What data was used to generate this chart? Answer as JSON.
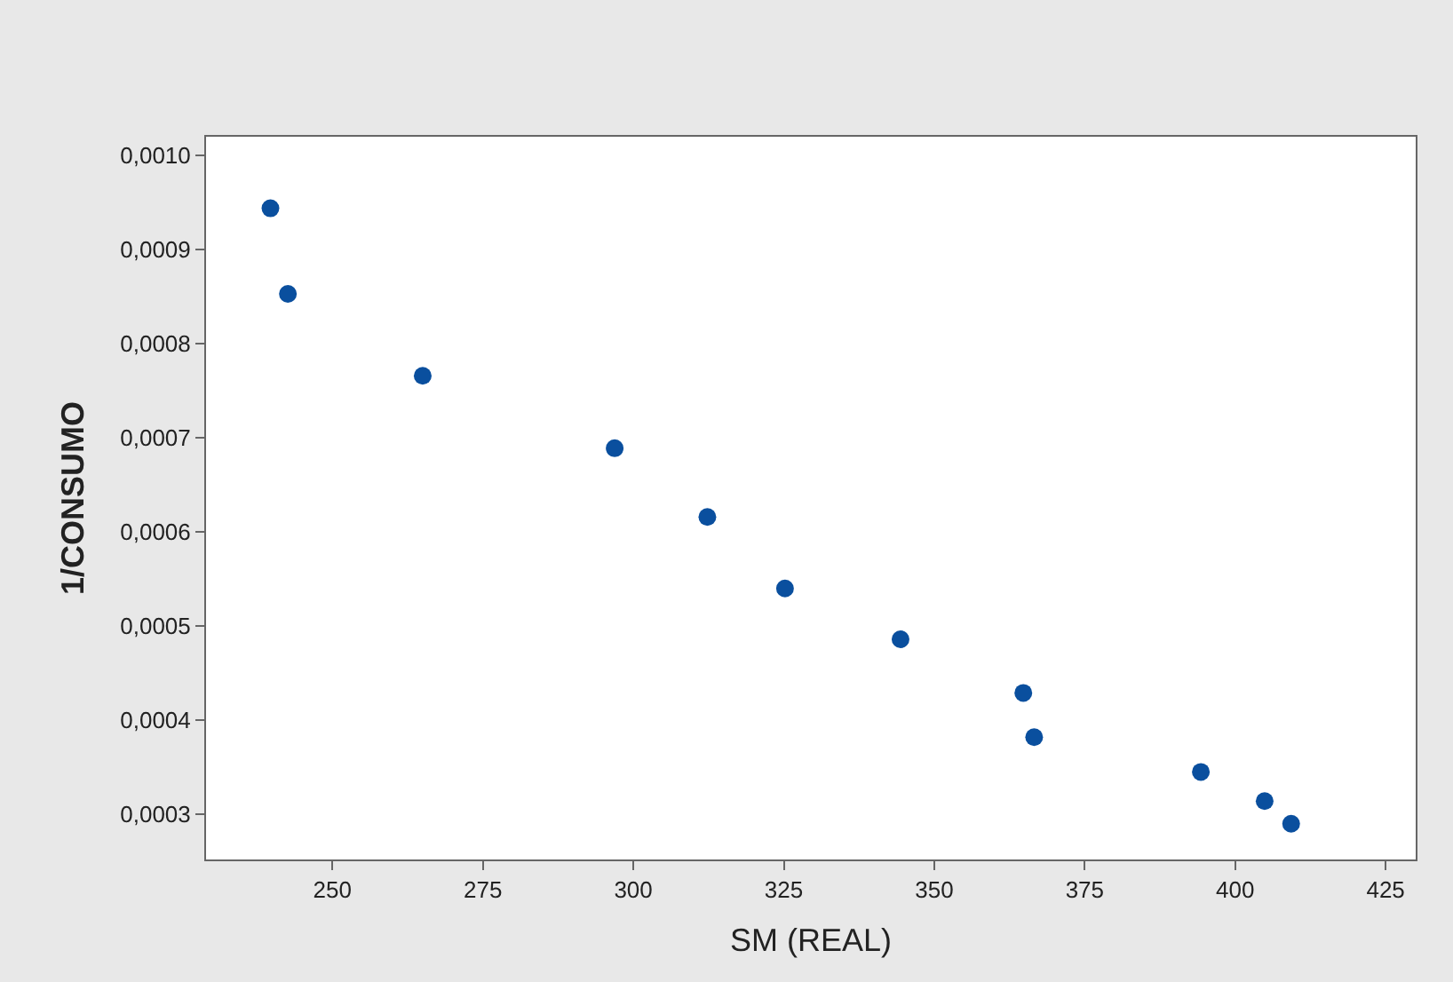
{
  "chart_data": {
    "type": "scatter",
    "xlabel": "SM (REAL)",
    "ylabel": "1/CONSUMO",
    "x": [
      239.7,
      242.6,
      265.0,
      296.9,
      312.3,
      325.2,
      344.4,
      364.8,
      366.6,
      394.3,
      404.9,
      409.3
    ],
    "series": [
      {
        "color": "#0a4f9e",
        "values": [
          0.000944,
          0.000853,
          0.000766,
          0.000689,
          0.000616,
          0.00054,
          0.000486,
          0.000429,
          0.000382,
          0.000345,
          0.000314,
          0.00029
        ]
      }
    ],
    "xlim": [
      229,
      430
    ],
    "ylim": [
      0.000252,
      0.00102
    ],
    "xticks": [
      250,
      275,
      300,
      325,
      350,
      375,
      400,
      425
    ],
    "yticks": [
      {
        "value": 0.0003,
        "label": "0,0003"
      },
      {
        "value": 0.0004,
        "label": "0,0004"
      },
      {
        "value": 0.0005,
        "label": "0,0005"
      },
      {
        "value": 0.0006,
        "label": "0,0006"
      },
      {
        "value": 0.0007,
        "label": "0,0007"
      },
      {
        "value": 0.0008,
        "label": "0,0008"
      },
      {
        "value": 0.0009,
        "label": "0,0009"
      },
      {
        "value": 0.001,
        "label": "0,0010"
      }
    ],
    "marker": "circle",
    "grid": false,
    "legend": false
  }
}
